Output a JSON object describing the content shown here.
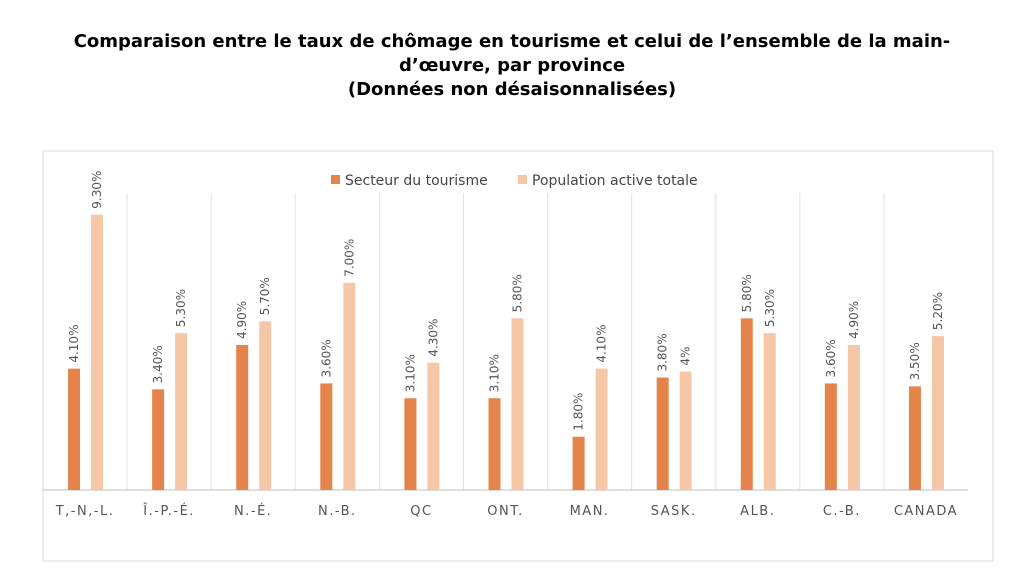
{
  "chart_data": {
    "type": "bar",
    "title_lines": [
      "Comparaison entre le taux de chômage en tourisme et celui de l’ensemble de la main-",
      "d’œuvre, par province",
      "(Données non désaisonnalisées)"
    ],
    "categories": [
      "T,-N,-L.",
      "Î.-P.-É.",
      "N.-É.",
      "N.-B.",
      "QC",
      "ONT.",
      "MAN.",
      "SASK.",
      "ALB.",
      "C.-B.",
      "CANADA"
    ],
    "series": [
      {
        "name": "Secteur du tourisme",
        "color": "#E4844A",
        "values": [
          4.1,
          3.4,
          4.9,
          3.6,
          3.1,
          3.1,
          1.8,
          3.8,
          5.8,
          3.6,
          3.5
        ],
        "labels": [
          "4.10%",
          "3.40%",
          "4.90%",
          "3.60%",
          "3.10%",
          "3.10%",
          "1.80%",
          "3.80%",
          "5.80%",
          "3.60%",
          "3.50%"
        ]
      },
      {
        "name": "Population active totale",
        "color": "#F6C7A7",
        "values": [
          9.3,
          5.3,
          5.7,
          7.0,
          4.3,
          5.8,
          4.1,
          4.0,
          5.3,
          4.9,
          5.2
        ],
        "labels": [
          "9.30%",
          "5.30%",
          "5.70%",
          "7.00%",
          "4.30%",
          "5.80%",
          "4.10%",
          "4%",
          "5.30%",
          "4.90%",
          "5.20%"
        ]
      }
    ],
    "ylim": [
      0,
      10
    ],
    "legend_position": "top-center",
    "grid": false,
    "category_separators": true
  }
}
